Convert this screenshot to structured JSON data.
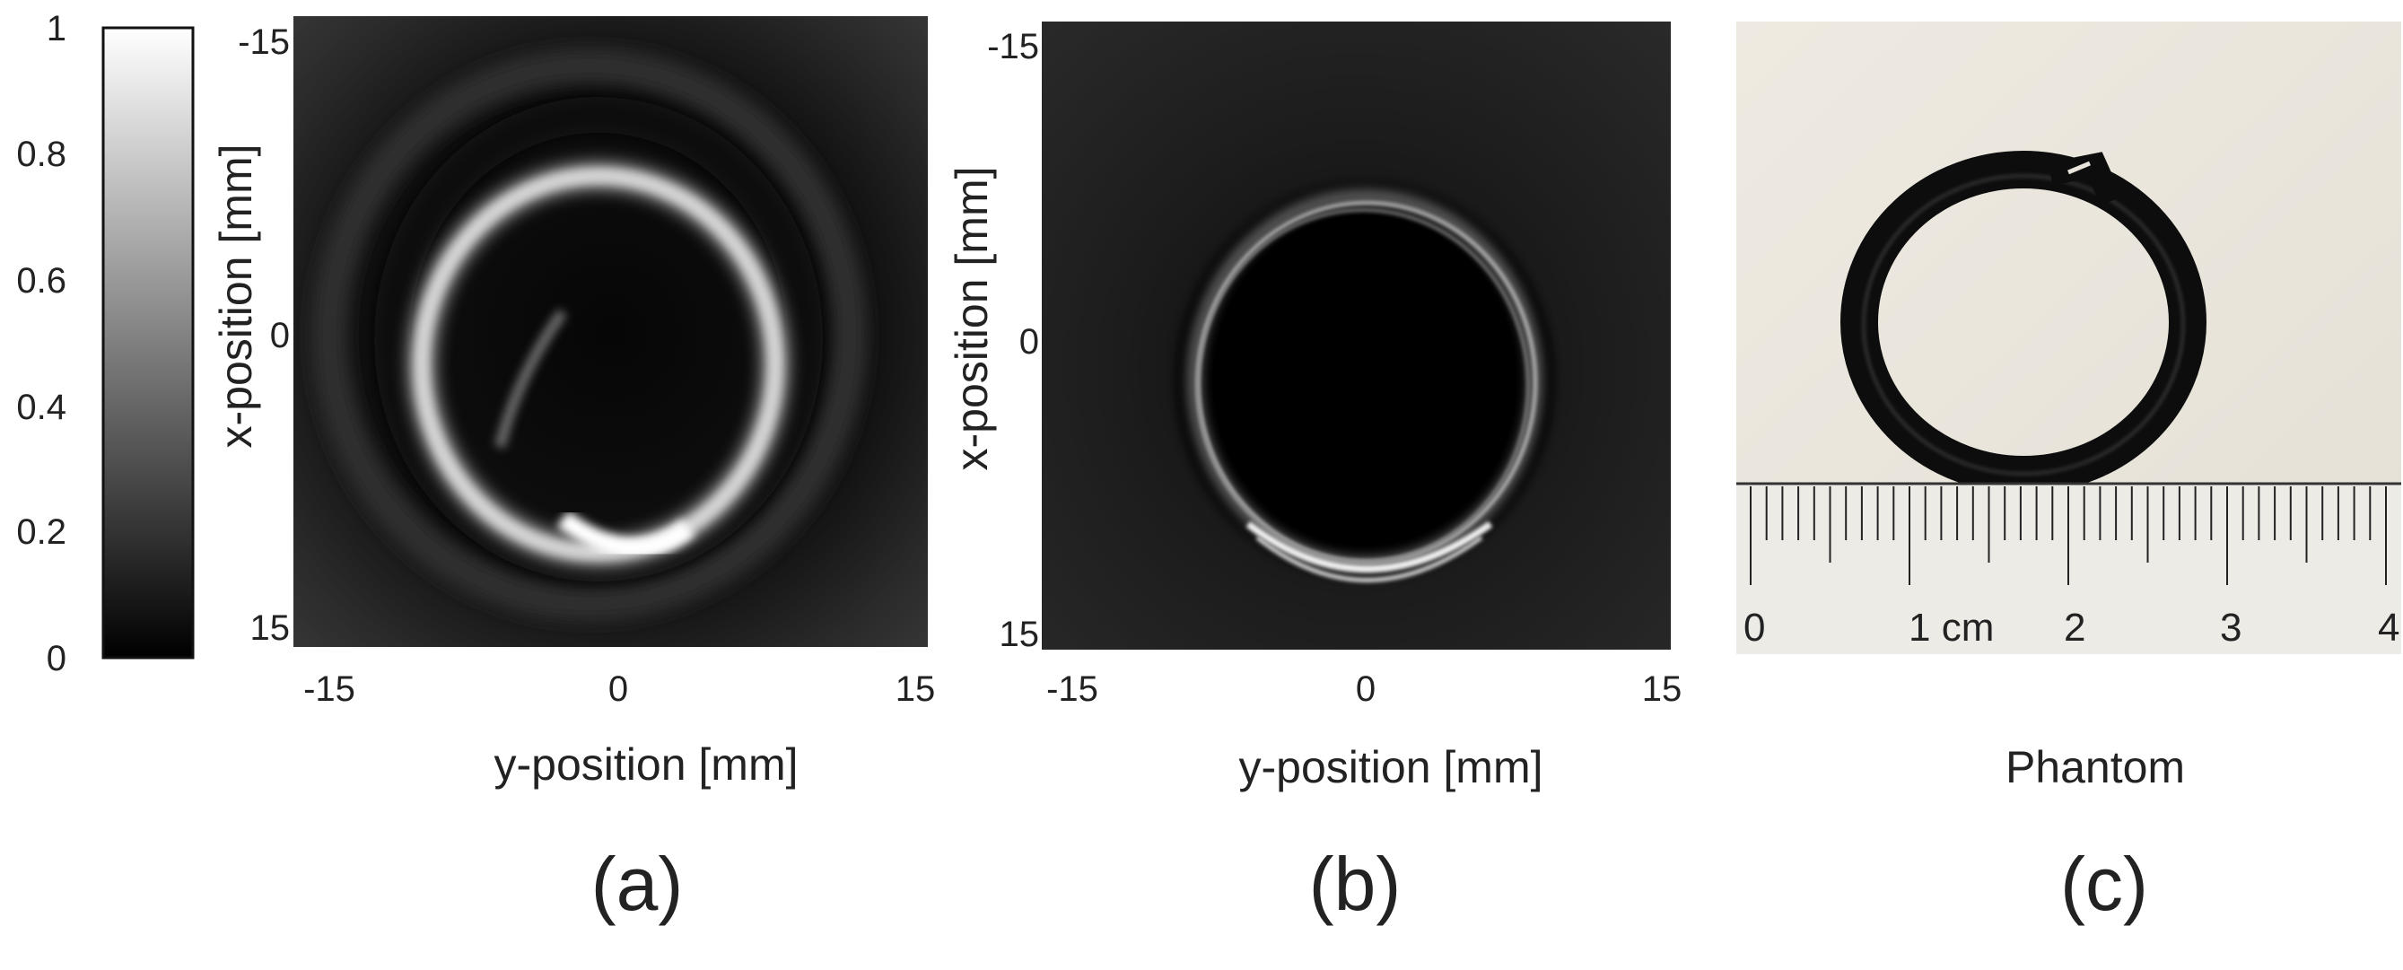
{
  "colorbar": {
    "ticks": [
      "1",
      "0.8",
      "0.6",
      "0.4",
      "0.2",
      "0"
    ],
    "range": [
      0,
      1
    ],
    "colormap": "gray"
  },
  "panel_a": {
    "x_ticks": [
      "-15",
      "0",
      "15"
    ],
    "y_ticks": [
      "-15",
      "0",
      "15"
    ],
    "xlabel": "y-position [mm]",
    "ylabel": "x-position [mm]",
    "caption": "(a)"
  },
  "panel_b": {
    "x_ticks": [
      "-15",
      "0",
      "15"
    ],
    "y_ticks": [
      "-15",
      "0",
      "15"
    ],
    "xlabel": "y-position [mm]",
    "ylabel": "x-position [mm]",
    "caption": "(b)"
  },
  "panel_c": {
    "ruler_labels": [
      "0",
      "1 cm",
      "2",
      "3",
      "4"
    ],
    "label": "Phantom",
    "caption": "(c)"
  },
  "chart_data": [
    {
      "type": "heatmap",
      "colormap": "gray",
      "zlim": [
        0,
        1
      ],
      "xlim": [
        -15,
        15
      ],
      "ylim": [
        -15,
        15
      ],
      "xlabel": "y-position [mm]",
      "ylabel": "x-position [mm]"
    },
    {
      "type": "heatmap",
      "colormap": "gray",
      "zlim": [
        0,
        1
      ],
      "xlim": [
        -15,
        15
      ],
      "ylim": [
        -15,
        15
      ],
      "xlabel": "y-position [mm]",
      "ylabel": "x-position [mm]"
    }
  ]
}
